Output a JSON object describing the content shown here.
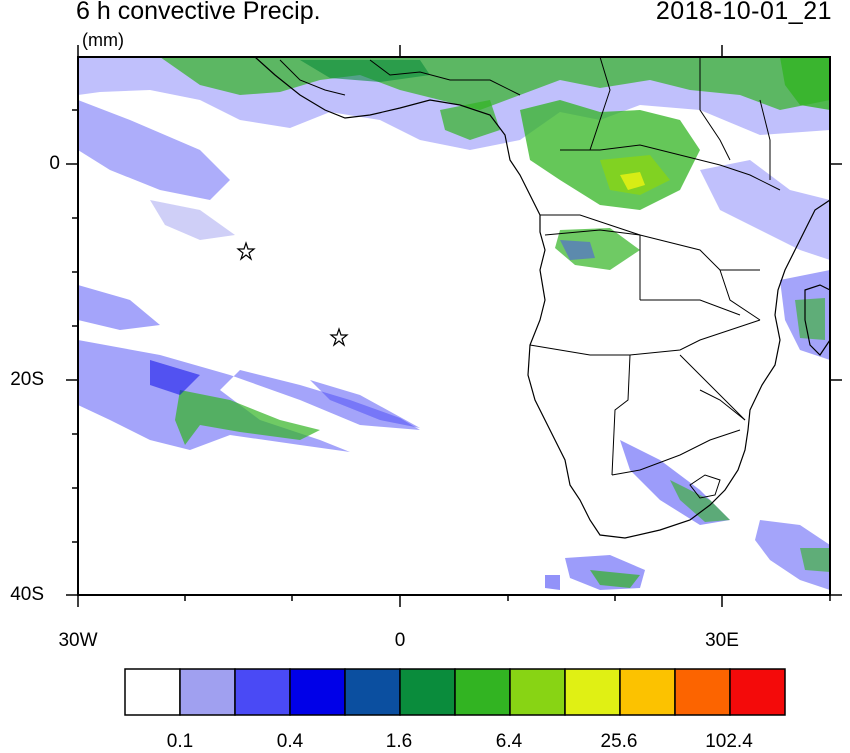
{
  "header": {
    "title": "6 h convective Precip.",
    "units": "(mm)",
    "datetime": "2018-10-01_21"
  },
  "axes": {
    "y_labels": [
      {
        "label": "0",
        "lat": 0
      },
      {
        "label": "20S",
        "lat": -20
      },
      {
        "label": "40S",
        "lat": -40
      }
    ],
    "x_labels": [
      {
        "label": "30W",
        "lon": -30
      },
      {
        "label": "0",
        "lon": 0
      },
      {
        "label": "30E",
        "lon": 30
      }
    ],
    "lon_range": [
      -30,
      40
    ],
    "lat_range": [
      -40,
      10
    ]
  },
  "map": {
    "type": "precipitation map",
    "region": "South Atlantic and southern Africa",
    "markers": [
      {
        "icon": "star-icon",
        "lon": -14.5,
        "lat": -8
      },
      {
        "icon": "star-icon",
        "lon": -5.7,
        "lat": -16
      }
    ]
  },
  "colorbar": {
    "colors": [
      "#ffffff",
      "#a0a0f0",
      "#4a4af5",
      "#0000e8",
      "#0b4fa0",
      "#0a8c3c",
      "#32b422",
      "#88d414",
      "#e0f014",
      "#fcc200",
      "#fc6400",
      "#f40a0a"
    ],
    "labels": [
      "0.1",
      "0.4",
      "1.6",
      "6.4",
      "25.6",
      "102.4"
    ]
  }
}
